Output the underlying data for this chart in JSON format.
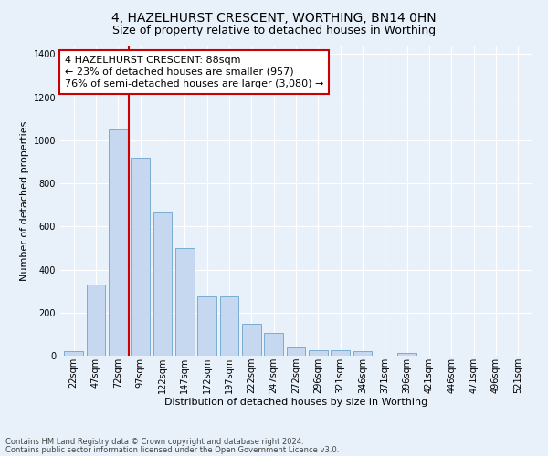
{
  "title": "4, HAZELHURST CRESCENT, WORTHING, BN14 0HN",
  "subtitle": "Size of property relative to detached houses in Worthing",
  "xlabel": "Distribution of detached houses by size in Worthing",
  "ylabel": "Number of detached properties",
  "footnote1": "Contains HM Land Registry data © Crown copyright and database right 2024.",
  "footnote2": "Contains public sector information licensed under the Open Government Licence v3.0.",
  "bar_labels": [
    "22sqm",
    "47sqm",
    "72sqm",
    "97sqm",
    "122sqm",
    "147sqm",
    "172sqm",
    "197sqm",
    "222sqm",
    "247sqm",
    "272sqm",
    "296sqm",
    "321sqm",
    "346sqm",
    "371sqm",
    "396sqm",
    "421sqm",
    "446sqm",
    "471sqm",
    "496sqm",
    "521sqm"
  ],
  "bar_values": [
    20,
    330,
    1055,
    920,
    665,
    500,
    275,
    275,
    150,
    105,
    38,
    25,
    25,
    20,
    0,
    12,
    0,
    0,
    0,
    0,
    0
  ],
  "bar_color": "#c5d8f0",
  "bar_edge_color": "#7aadd4",
  "background_color": "#e8f0fa",
  "grid_color": "#ffffff",
  "annotation_line1": "4 HAZELHURST CRESCENT: 88sqm",
  "annotation_line2": "← 23% of detached houses are smaller (957)",
  "annotation_line3": "76% of semi-detached houses are larger (3,080) →",
  "annotation_box_color": "#ffffff",
  "annotation_box_edge_color": "#cc0000",
  "vline_color": "#cc0000",
  "vline_x_bin": 3,
  "ylim": [
    0,
    1440
  ],
  "yticks": [
    0,
    200,
    400,
    600,
    800,
    1000,
    1200,
    1400
  ],
  "title_fontsize": 10,
  "subtitle_fontsize": 9,
  "axis_label_fontsize": 8,
  "tick_fontsize": 7,
  "footnote_fontsize": 6,
  "annot_fontsize": 8
}
